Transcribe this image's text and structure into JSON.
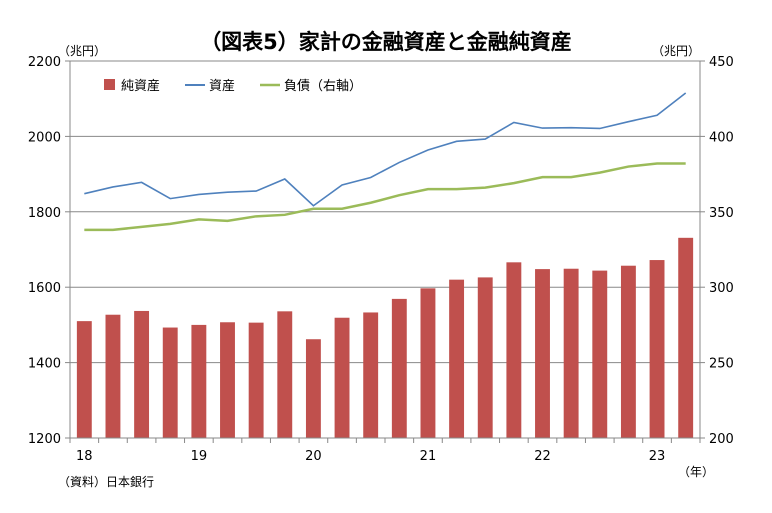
{
  "chart_data": {
    "type": "bar",
    "title": "（図表5）家計の金融資産と金融純資産",
    "left_unit": "（兆円）",
    "right_unit": "（兆円）",
    "x_unit": "（年）",
    "source": "（資料）日本銀行",
    "grid": true,
    "legend_position": "top-left",
    "left_axis": {
      "min": 1200,
      "max": 2200,
      "ticks": [
        "1200",
        "1400",
        "1600",
        "1800",
        "2000",
        "2200"
      ]
    },
    "right_axis": {
      "min": 200,
      "max": 450,
      "ticks": [
        "200",
        "250",
        "300",
        "350",
        "400",
        "450"
      ]
    },
    "x_tick_labels": [
      "18",
      "19",
      "20",
      "21",
      "22",
      "23"
    ],
    "x_tick_positions": [
      0,
      4,
      8,
      12,
      16,
      20
    ],
    "colors": {
      "net_assets": "#C0504D",
      "assets": "#4F81BD",
      "liabilities": "#9BBB59",
      "grid": "#888888"
    },
    "series": [
      {
        "name": "純資産",
        "type": "bar",
        "axis": "left",
        "values": [
          1510,
          1527,
          1537,
          1493,
          1500,
          1507,
          1506,
          1536,
          1462,
          1519,
          1533,
          1569,
          1597,
          1620,
          1626,
          1666,
          1648,
          1649,
          1644,
          1657,
          1672,
          1731
        ]
      },
      {
        "name": "資産",
        "type": "line",
        "axis": "left",
        "values": [
          1848,
          1866,
          1878,
          1835,
          1846,
          1852,
          1855,
          1887,
          1816,
          1871,
          1891,
          1931,
          1964,
          1987,
          1993,
          2037,
          2022,
          2023,
          2021,
          2039,
          2056,
          2115
        ]
      },
      {
        "name": "負債（右軸）",
        "type": "line",
        "axis": "right",
        "values": [
          338,
          338,
          340,
          342,
          345,
          344,
          347,
          348,
          352,
          352,
          356,
          361,
          365,
          365,
          366,
          369,
          373,
          373,
          376,
          380,
          382,
          382
        ]
      }
    ]
  }
}
